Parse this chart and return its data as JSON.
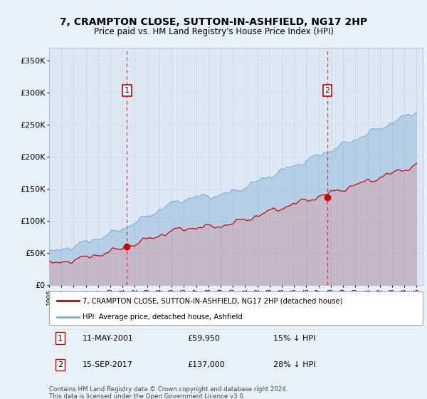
{
  "title": "7, CRAMPTON CLOSE, SUTTON-IN-ASHFIELD, NG17 2HP",
  "subtitle": "Price paid vs. HM Land Registry's House Price Index (HPI)",
  "bg_color": "#e8f0f8",
  "ylim": [
    0,
    370000
  ],
  "yticks": [
    0,
    50000,
    100000,
    150000,
    200000,
    250000,
    300000,
    350000
  ],
  "ytick_labels": [
    "£0",
    "£50K",
    "£100K",
    "£150K",
    "£200K",
    "£250K",
    "£300K",
    "£350K"
  ],
  "x_start_year": 1995,
  "x_end_year": 2025,
  "hpi_color": "#7bafd4",
  "price_color": "#cc0000",
  "sale1_date": 2001.36,
  "sale1_price": 59950,
  "sale2_date": 2017.71,
  "sale2_price": 137000,
  "legend_line1": "7, CRAMPTON CLOSE, SUTTON-IN-ASHFIELD, NG17 2HP (detached house)",
  "legend_line2": "HPI: Average price, detached house, Ashfield",
  "sale1_col1": "11-MAY-2001",
  "sale1_col2": "£59,950",
  "sale1_col3": "15% ↓ HPI",
  "sale2_col1": "15-SEP-2017",
  "sale2_col2": "£137,000",
  "sale2_col3": "28% ↓ HPI",
  "footer": "Contains HM Land Registry data © Crown copyright and database right 2024.\nThis data is licensed under the Open Government Licence v3.0.",
  "grid_color": "#c8d8e8",
  "vline_color": "#cc0000",
  "fill_color": "#c8dcf0"
}
